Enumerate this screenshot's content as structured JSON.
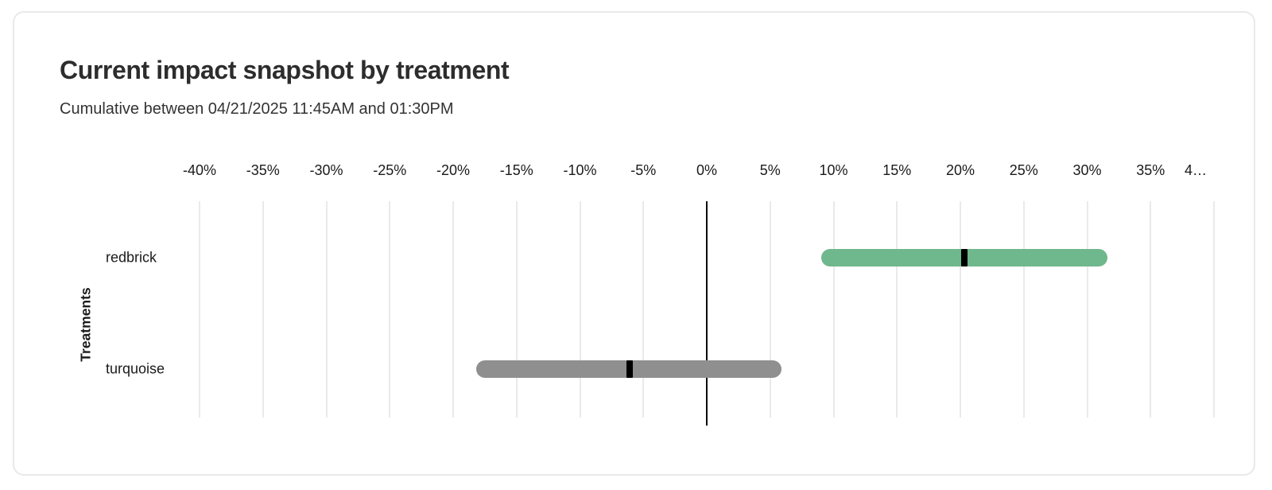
{
  "card": {
    "title": "Current impact snapshot by treatment",
    "subtitle": "Cumulative between 04/21/2025 11:45AM and 01:30PM"
  },
  "chart_data": {
    "type": "bar",
    "orientation": "horizontal",
    "title": "Current impact snapshot by treatment",
    "subtitle": "Cumulative between 04/21/2025 11:45AM and 01:30PM",
    "xlabel": "",
    "ylabel": "Treatments",
    "x_unit": "%",
    "xlim": [
      -40,
      40
    ],
    "x_tick_step": 5,
    "x_tick_values": [
      -40,
      -35,
      -30,
      -25,
      -20,
      -15,
      -10,
      -5,
      0,
      5,
      10,
      15,
      20,
      25,
      30,
      35,
      40
    ],
    "x_tick_labels": [
      "-40%",
      "-35%",
      "-30%",
      "-25%",
      "-20%",
      "-15%",
      "-10%",
      "-5%",
      "0%",
      "5%",
      "10%",
      "15%",
      "20%",
      "25%",
      "30%",
      "35%",
      "4…"
    ],
    "categories": [
      "redbrick",
      "turquoise"
    ],
    "series": [
      {
        "name": "redbrick",
        "low": 9.0,
        "high": 31.6,
        "estimate": 20.3,
        "color": "#6fb78c"
      },
      {
        "name": "turquoise",
        "low": -18.2,
        "high": 5.9,
        "estimate": -6.1,
        "color": "#8f8f8f"
      }
    ],
    "estimate_marker_color": "#000000",
    "grid": true,
    "gridline_color": "#eaeaea",
    "zero_line_color": "#0a0a0a",
    "legend": "none"
  }
}
